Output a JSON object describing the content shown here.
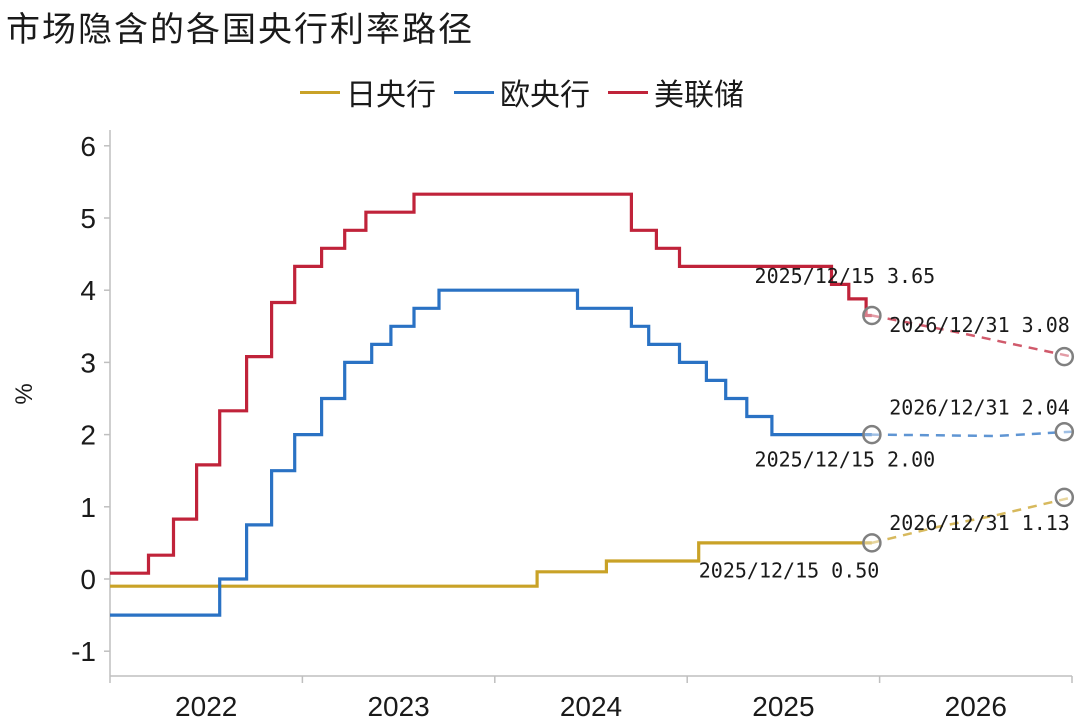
{
  "chart_data": {
    "type": "line",
    "title": "市场隐含的各国央行利率路径",
    "ylabel": "%",
    "ylim": [
      -1.4,
      6.3
    ],
    "yticks": [
      "6",
      "5",
      "4",
      "3",
      "2",
      "1",
      "0",
      "-1"
    ],
    "ytick_values": [
      6,
      5,
      4,
      3,
      2,
      1,
      0,
      -1
    ],
    "xlim": [
      2022.0,
      2027.0
    ],
    "xtick_labels": [
      "2022",
      "2023",
      "2024",
      "2025",
      "2026"
    ],
    "legend_position": "top",
    "colors": {
      "jp": "#c9a227",
      "eu": "#2a72c4",
      "us": "#c0233a"
    },
    "series": [
      {
        "name": "日央行",
        "key": "jp",
        "historical": [
          [
            2022.0,
            -0.1
          ],
          [
            2024.22,
            -0.1
          ],
          [
            2024.22,
            0.1
          ],
          [
            2024.58,
            0.1
          ],
          [
            2024.58,
            0.25
          ],
          [
            2025.06,
            0.25
          ],
          [
            2025.06,
            0.5
          ],
          [
            2025.96,
            0.5
          ]
        ],
        "forecast": [
          [
            2025.96,
            0.5
          ],
          [
            2026.3,
            0.72
          ],
          [
            2026.6,
            0.88
          ],
          [
            2027.0,
            1.13
          ]
        ]
      },
      {
        "name": "欧央行",
        "key": "eu",
        "historical": [
          [
            2022.0,
            -0.5
          ],
          [
            2022.57,
            -0.5
          ],
          [
            2022.57,
            0.0
          ],
          [
            2022.71,
            0.0
          ],
          [
            2022.71,
            0.75
          ],
          [
            2022.84,
            0.75
          ],
          [
            2022.84,
            1.5
          ],
          [
            2022.96,
            1.5
          ],
          [
            2022.96,
            2.0
          ],
          [
            2023.1,
            2.0
          ],
          [
            2023.1,
            2.5
          ],
          [
            2023.22,
            2.5
          ],
          [
            2023.22,
            3.0
          ],
          [
            2023.36,
            3.0
          ],
          [
            2023.36,
            3.25
          ],
          [
            2023.46,
            3.25
          ],
          [
            2023.46,
            3.5
          ],
          [
            2023.58,
            3.5
          ],
          [
            2023.58,
            3.75
          ],
          [
            2023.71,
            3.75
          ],
          [
            2023.71,
            4.0
          ],
          [
            2024.43,
            4.0
          ],
          [
            2024.43,
            3.75
          ],
          [
            2024.71,
            3.75
          ],
          [
            2024.71,
            3.5
          ],
          [
            2024.8,
            3.5
          ],
          [
            2024.8,
            3.25
          ],
          [
            2024.96,
            3.25
          ],
          [
            2024.96,
            3.0
          ],
          [
            2025.1,
            3.0
          ],
          [
            2025.1,
            2.75
          ],
          [
            2025.2,
            2.75
          ],
          [
            2025.2,
            2.5
          ],
          [
            2025.31,
            2.5
          ],
          [
            2025.31,
            2.25
          ],
          [
            2025.44,
            2.25
          ],
          [
            2025.44,
            2.0
          ],
          [
            2025.96,
            2.0
          ]
        ],
        "forecast": [
          [
            2025.96,
            2.0
          ],
          [
            2026.3,
            1.99
          ],
          [
            2026.6,
            1.98
          ],
          [
            2027.0,
            2.04
          ]
        ]
      },
      {
        "name": "美联储",
        "key": "us",
        "historical": [
          [
            2022.0,
            0.08
          ],
          [
            2022.2,
            0.08
          ],
          [
            2022.2,
            0.33
          ],
          [
            2022.33,
            0.33
          ],
          [
            2022.33,
            0.83
          ],
          [
            2022.45,
            0.83
          ],
          [
            2022.45,
            1.58
          ],
          [
            2022.57,
            1.58
          ],
          [
            2022.57,
            2.33
          ],
          [
            2022.71,
            2.33
          ],
          [
            2022.71,
            3.08
          ],
          [
            2022.84,
            3.08
          ],
          [
            2022.84,
            3.83
          ],
          [
            2022.96,
            3.83
          ],
          [
            2022.96,
            4.33
          ],
          [
            2023.1,
            4.33
          ],
          [
            2023.1,
            4.58
          ],
          [
            2023.22,
            4.58
          ],
          [
            2023.22,
            4.83
          ],
          [
            2023.33,
            4.83
          ],
          [
            2023.33,
            5.08
          ],
          [
            2023.58,
            5.08
          ],
          [
            2023.58,
            5.33
          ],
          [
            2024.71,
            5.33
          ],
          [
            2024.71,
            4.83
          ],
          [
            2024.84,
            4.83
          ],
          [
            2024.84,
            4.58
          ],
          [
            2024.96,
            4.58
          ],
          [
            2024.96,
            4.33
          ],
          [
            2025.75,
            4.33
          ],
          [
            2025.75,
            4.08
          ],
          [
            2025.84,
            4.08
          ],
          [
            2025.84,
            3.88
          ],
          [
            2025.93,
            3.88
          ],
          [
            2025.93,
            3.65
          ],
          [
            2025.96,
            3.65
          ]
        ],
        "forecast": [
          [
            2025.96,
            3.65
          ],
          [
            2026.4,
            3.42
          ],
          [
            2026.7,
            3.25
          ],
          [
            2027.0,
            3.08
          ]
        ]
      }
    ],
    "markers": [
      {
        "series": "us",
        "x": 2025.96,
        "y": 3.65,
        "label": "2025/12/15 3.65",
        "lx": 2025.35,
        "ly": 4.1
      },
      {
        "series": "us",
        "x": 2026.96,
        "y": 3.08,
        "label": "2026/12/31 3.08",
        "lx": 2026.05,
        "ly": 3.42
      },
      {
        "series": "eu",
        "x": 2025.96,
        "y": 2.0,
        "label": "2025/12/15 2.00",
        "lx": 2025.35,
        "ly": 1.56
      },
      {
        "series": "eu",
        "x": 2026.96,
        "y": 2.04,
        "label": "2026/12/31 2.04",
        "lx": 2026.05,
        "ly": 2.28
      },
      {
        "series": "jp",
        "x": 2025.96,
        "y": 0.5,
        "label": "2025/12/15 0.50",
        "lx": 2025.06,
        "ly": 0.02
      },
      {
        "series": "jp",
        "x": 2026.96,
        "y": 1.13,
        "label": "2026/12/31 1.13",
        "lx": 2026.05,
        "ly": 0.68
      }
    ]
  }
}
